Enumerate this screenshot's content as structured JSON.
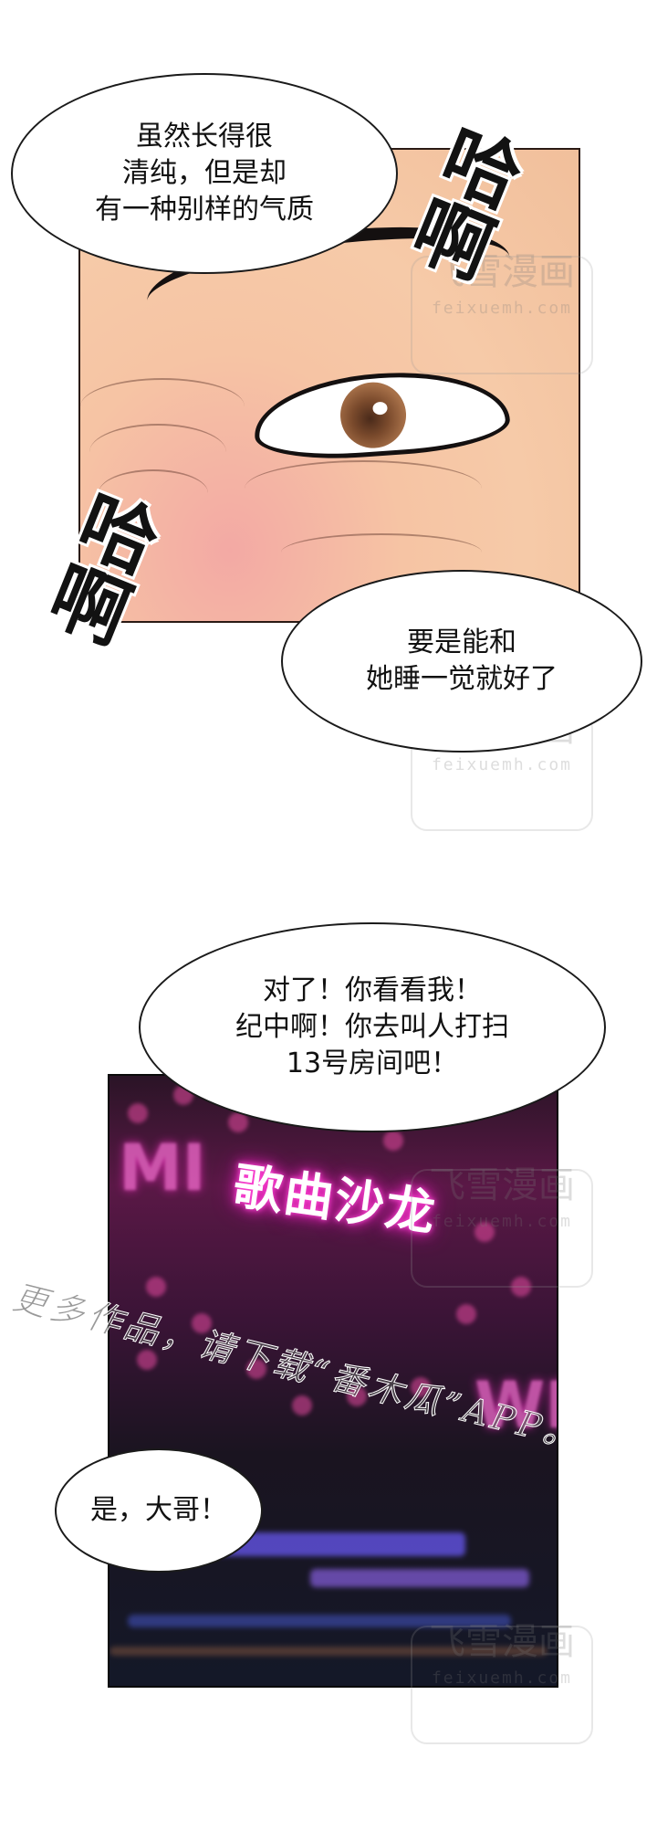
{
  "panel_1": {
    "bubble_thought": "虽然长得很\n清纯，但是却\n有一种别样的气质",
    "sfx_top": "哈\n啊",
    "sfx_bottom": "哈\n啊",
    "bubble_wish": "要是能和\n她睡一觉就好了"
  },
  "panel_2": {
    "bubble_order": "对了！你看看我！\n纪中啊！你去叫人打扫\n13号房间吧！",
    "neon_sign": "歌曲沙龙",
    "bubble_reply": "是，大哥！"
  },
  "promo_text": "更多作品，请下载“番木瓜”APP。",
  "watermark": {
    "title": "飞雪漫画",
    "url": "feixuemh.com"
  },
  "colors": {
    "skin": "#f6c4a4",
    "iris": "#a9724a",
    "neon_pink": "#ff2bc8",
    "neon_blue": "#7a6cff",
    "outline": "#1a1a1a"
  }
}
